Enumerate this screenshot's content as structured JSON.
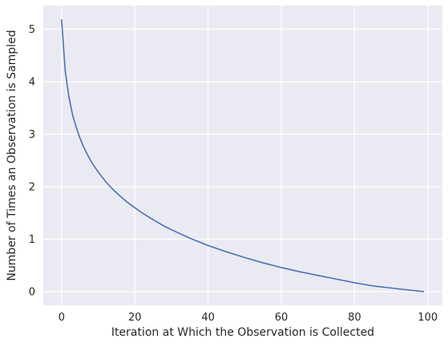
{
  "chart_data": {
    "type": "line",
    "title": "",
    "xlabel": "Iteration at Which the Observation is Collected",
    "ylabel": "Number of Times an Observation is Sampled",
    "xlim": [
      -5,
      104
    ],
    "ylim": [
      -0.26,
      5.45
    ],
    "xticks": [
      0,
      20,
      40,
      60,
      80,
      100
    ],
    "yticks": [
      0,
      1,
      2,
      3,
      4,
      5
    ],
    "xtick_labels": [
      "0",
      "20",
      "40",
      "60",
      "80",
      "100"
    ],
    "ytick_labels": [
      "0",
      "1",
      "2",
      "3",
      "4",
      "5"
    ],
    "grid": true,
    "background_color": "#eaeaf2",
    "grid_color": "#ffffff",
    "series": [
      {
        "name": "",
        "color": "#4c72b0",
        "x": [
          0,
          1,
          2,
          3,
          4,
          5,
          6,
          7,
          8,
          9,
          10,
          12,
          14,
          16,
          18,
          20,
          22,
          25,
          28,
          30,
          35,
          40,
          45,
          50,
          55,
          60,
          65,
          70,
          75,
          80,
          85,
          90,
          95,
          99
        ],
        "y": [
          5.19,
          4.2,
          3.71,
          3.37,
          3.13,
          2.93,
          2.76,
          2.62,
          2.49,
          2.38,
          2.28,
          2.1,
          1.95,
          1.82,
          1.7,
          1.6,
          1.5,
          1.37,
          1.25,
          1.18,
          1.02,
          0.88,
          0.76,
          0.65,
          0.55,
          0.46,
          0.38,
          0.31,
          0.24,
          0.17,
          0.11,
          0.07,
          0.03,
          0.0
        ]
      }
    ]
  }
}
